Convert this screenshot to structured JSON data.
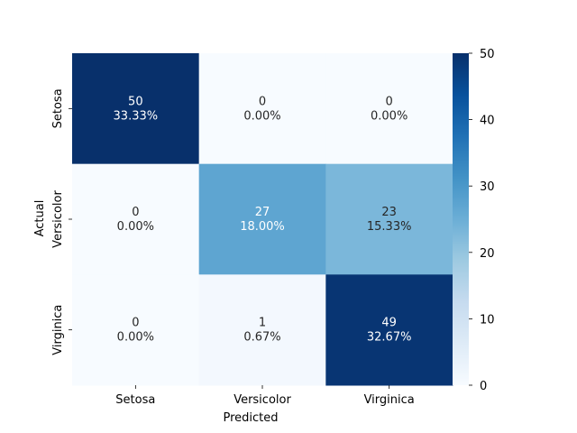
{
  "chart_data": {
    "type": "heatmap",
    "title": "",
    "xlabel": "Predicted",
    "ylabel": "Actual",
    "x_categories": [
      "Setosa",
      "Versicolor",
      "Virginica"
    ],
    "y_categories": [
      "Setosa",
      "Versicolor",
      "Virginica"
    ],
    "values": [
      [
        50,
        0,
        0
      ],
      [
        0,
        27,
        23
      ],
      [
        0,
        1,
        49
      ]
    ],
    "cell_labels": [
      [
        [
          "50",
          "33.33%"
        ],
        [
          "0",
          "0.00%"
        ],
        [
          "0",
          "0.00%"
        ]
      ],
      [
        [
          "0",
          "0.00%"
        ],
        [
          "27",
          "18.00%"
        ],
        [
          "23",
          "15.33%"
        ]
      ],
      [
        [
          "0",
          "0.00%"
        ],
        [
          "1",
          "0.67%"
        ],
        [
          "49",
          "32.67%"
        ]
      ]
    ],
    "colormap": "Blues",
    "colorbar": {
      "min": 0,
      "max": 50,
      "ticks": [
        "0",
        "10",
        "20",
        "30",
        "40",
        "50"
      ]
    }
  }
}
